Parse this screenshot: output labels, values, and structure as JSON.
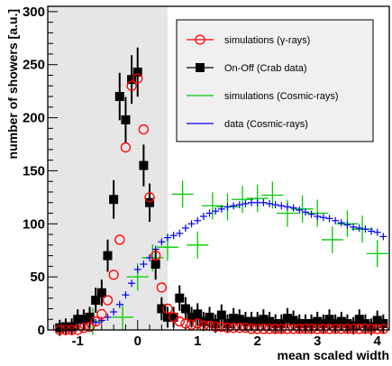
{
  "chart_data": {
    "type": "scatter",
    "xlabel": "mean scaled width",
    "ylabel": "number of showers [a.u.]",
    "xlim": [
      -1.5,
      4.2
    ],
    "ylim": [
      0,
      305
    ],
    "x_ticks": [
      -1,
      0,
      1,
      2,
      3,
      4
    ],
    "y_ticks": [
      0,
      50,
      100,
      150,
      200,
      250,
      300
    ],
    "shaded_region": {
      "x_from": -1.5,
      "x_to": 0.5,
      "color": "#e6e6e6"
    },
    "legend_position": "top-right",
    "series": [
      {
        "name": "simulations (γ-rays)",
        "color": "#ff0000",
        "marker": "open-circle",
        "x": [
          -1.3,
          -1.2,
          -1.1,
          -1.0,
          -0.9,
          -0.8,
          -0.7,
          -0.6,
          -0.5,
          -0.4,
          -0.3,
          -0.2,
          -0.1,
          0.0,
          0.1,
          0.2,
          0.3,
          0.4,
          0.5,
          0.6,
          0.7,
          0.8,
          0.9,
          1.0,
          1.1,
          1.2,
          1.3,
          1.4,
          1.5,
          1.6,
          1.7,
          1.8,
          1.9,
          2.0,
          2.1,
          2.2,
          2.3,
          2.4,
          2.5,
          2.6,
          2.7,
          2.8,
          2.9,
          3.0,
          3.1,
          3.2,
          3.3,
          3.4,
          3.5,
          3.6,
          3.7,
          3.8,
          3.9,
          4.0,
          4.1
        ],
        "y": [
          0,
          0,
          0,
          0,
          2,
          3,
          8,
          15,
          28,
          52,
          85,
          172,
          230,
          237,
          189,
          125,
          70,
          40,
          20,
          12,
          8,
          6,
          5,
          6,
          4,
          4,
          3,
          3,
          2,
          2,
          2,
          2,
          1,
          1,
          1,
          1,
          1,
          1,
          1,
          1,
          1,
          1,
          1,
          1,
          1,
          1,
          1,
          1,
          1,
          1,
          1,
          1,
          1,
          1,
          1
        ]
      },
      {
        "name": "On-Off (Crab data)",
        "color": "#000000",
        "marker": "filled-square",
        "x": [
          -1.3,
          -1.2,
          -1.1,
          -1.0,
          -0.9,
          -0.8,
          -0.7,
          -0.6,
          -0.5,
          -0.4,
          -0.3,
          -0.2,
          -0.1,
          0.0,
          0.1,
          0.2,
          0.3,
          0.4,
          0.5,
          0.6,
          0.7,
          0.8,
          0.9,
          1.0,
          1.1,
          1.2,
          1.3,
          1.4,
          1.5,
          1.6,
          1.7,
          1.8,
          1.9,
          2.0,
          2.1,
          2.2,
          2.3,
          2.4,
          2.5,
          2.6,
          2.7,
          2.8,
          2.9,
          3.0,
          3.1,
          3.2,
          3.3,
          3.4,
          3.5,
          3.6,
          3.7,
          3.8,
          3.9,
          4.0,
          4.1
        ],
        "y": [
          2,
          3,
          3,
          10,
          10,
          12,
          28,
          35,
          70,
          123,
          220,
          198,
          236,
          243,
          155,
          120,
          62,
          20,
          12,
          12,
          30,
          20,
          12,
          15,
          8,
          12,
          6,
          14,
          6,
          11,
          10,
          8,
          8,
          8,
          10,
          8,
          6,
          6,
          11,
          9,
          6,
          6,
          6,
          8,
          6,
          10,
          6,
          8,
          6,
          4,
          10,
          6,
          3,
          9,
          6
        ]
      },
      {
        "name": "simulations (Cosmic-rays)",
        "color": "#00cc00",
        "marker": "cross",
        "x": [
          -0.75,
          -0.25,
          0.0,
          0.25,
          0.5,
          0.75,
          1.0,
          1.25,
          1.5,
          1.75,
          2.0,
          2.25,
          2.5,
          2.75,
          3.0,
          3.25,
          3.5,
          3.75,
          4.0
        ],
        "y": [
          8,
          12,
          50,
          68,
          78,
          128,
          80,
          117,
          116,
          123,
          124,
          127,
          110,
          114,
          110,
          85,
          100,
          95,
          72
        ]
      },
      {
        "name": "data (Cosmic-rays)",
        "color": "#0000ff",
        "marker": "plus",
        "x": [
          -0.7,
          -0.6,
          -0.5,
          -0.4,
          -0.3,
          -0.2,
          -0.1,
          0.0,
          0.1,
          0.2,
          0.3,
          0.4,
          0.5,
          0.6,
          0.7,
          0.8,
          0.9,
          1.0,
          1.1,
          1.2,
          1.3,
          1.4,
          1.5,
          1.6,
          1.7,
          1.8,
          1.9,
          2.0,
          2.1,
          2.2,
          2.3,
          2.4,
          2.5,
          2.6,
          2.7,
          2.8,
          2.9,
          3.0,
          3.1,
          3.2,
          3.3,
          3.4,
          3.5,
          3.6,
          3.7,
          3.8,
          3.9,
          4.0,
          4.1
        ],
        "y": [
          7,
          9,
          12,
          17,
          24,
          33,
          44,
          57,
          62,
          68,
          76,
          83,
          87,
          89,
          91,
          96,
          100,
          103,
          107,
          110,
          112,
          114,
          116,
          117,
          118,
          119,
          120,
          120,
          120,
          119,
          118,
          117,
          116,
          115,
          113,
          111,
          109,
          107,
          106,
          105,
          103,
          101,
          99,
          97,
          96,
          95,
          93,
          92,
          88
        ]
      }
    ]
  }
}
